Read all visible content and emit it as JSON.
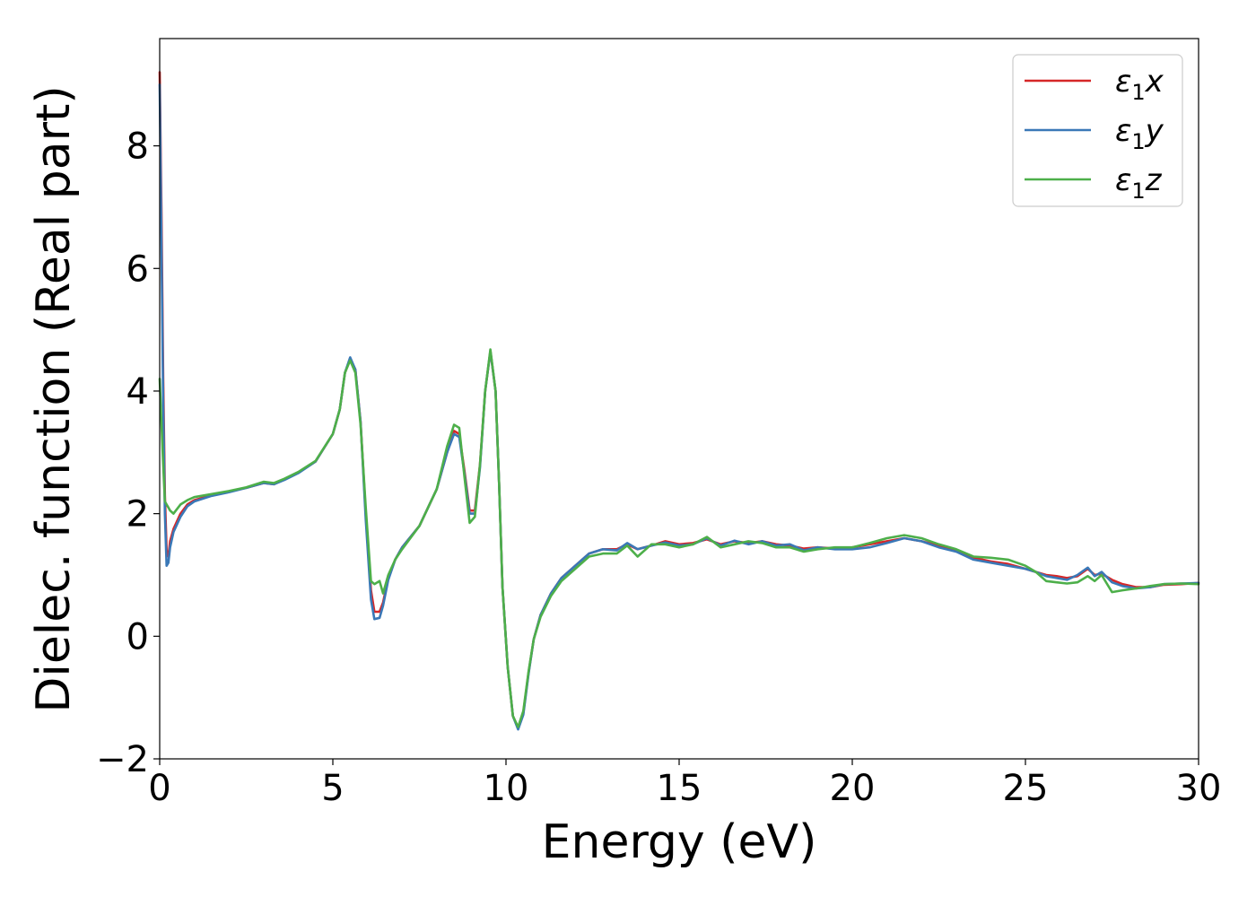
{
  "chart_data": {
    "type": "line",
    "title": "",
    "xlabel": "Energy (eV)",
    "ylabel": "Dielec. function (Real part)",
    "xlim": [
      0,
      30
    ],
    "ylim": [
      -2,
      9.75
    ],
    "xticks": [
      0,
      5,
      10,
      15,
      20,
      25,
      30
    ],
    "yticks": [
      -2,
      0,
      2,
      4,
      6,
      8
    ],
    "grid": false,
    "legend_position": "top-right",
    "series": [
      {
        "name": "ε₁x",
        "legend_main": "ε",
        "legend_sub": "1",
        "legend_suffix": "x",
        "color": "#d62728",
        "x": [
          0.0,
          0.05,
          0.1,
          0.15,
          0.2,
          0.25,
          0.3,
          0.4,
          0.6,
          0.8,
          1.0,
          1.5,
          2.0,
          2.5,
          3.0,
          3.3,
          3.6,
          4.0,
          4.5,
          5.0,
          5.2,
          5.35,
          5.5,
          5.65,
          5.8,
          5.95,
          6.1,
          6.2,
          6.35,
          6.45,
          6.6,
          6.8,
          7.0,
          7.5,
          8.0,
          8.3,
          8.5,
          8.65,
          8.8,
          8.95,
          9.1,
          9.25,
          9.4,
          9.55,
          9.7,
          9.8,
          9.9,
          10.05,
          10.2,
          10.35,
          10.5,
          10.65,
          10.8,
          11.0,
          11.3,
          11.6,
          12.0,
          12.4,
          12.8,
          13.2,
          13.5,
          13.8,
          14.2,
          14.6,
          15.0,
          15.4,
          15.8,
          16.2,
          16.6,
          17.0,
          17.4,
          17.8,
          18.2,
          18.6,
          19.0,
          19.5,
          20.0,
          20.5,
          21.0,
          21.5,
          22.0,
          22.5,
          23.0,
          23.5,
          24.0,
          24.5,
          25.0,
          25.3,
          25.6,
          25.9,
          26.2,
          26.5,
          26.8,
          27.0,
          27.2,
          27.5,
          27.8,
          28.2,
          28.6,
          29.0,
          29.5,
          30.0
        ],
        "y": [
          9.2,
          7.0,
          4.2,
          2.3,
          1.4,
          1.3,
          1.55,
          1.75,
          2.0,
          2.15,
          2.22,
          2.3,
          2.36,
          2.42,
          2.5,
          2.48,
          2.56,
          2.67,
          2.85,
          3.3,
          3.7,
          4.3,
          4.52,
          4.35,
          3.5,
          2.0,
          0.75,
          0.4,
          0.4,
          0.55,
          0.95,
          1.25,
          1.45,
          1.8,
          2.4,
          3.0,
          3.35,
          3.3,
          2.7,
          2.05,
          2.05,
          2.8,
          4.0,
          4.65,
          4.0,
          2.5,
          0.8,
          -0.5,
          -1.3,
          -1.5,
          -1.25,
          -0.6,
          -0.05,
          0.35,
          0.7,
          0.95,
          1.15,
          1.35,
          1.42,
          1.42,
          1.5,
          1.42,
          1.48,
          1.55,
          1.5,
          1.52,
          1.58,
          1.5,
          1.55,
          1.52,
          1.55,
          1.5,
          1.48,
          1.43,
          1.45,
          1.43,
          1.45,
          1.5,
          1.55,
          1.6,
          1.55,
          1.48,
          1.4,
          1.28,
          1.22,
          1.18,
          1.1,
          1.05,
          1.0,
          0.98,
          0.95,
          0.98,
          1.1,
          1.0,
          1.02,
          0.92,
          0.85,
          0.8,
          0.8,
          0.84,
          0.85,
          0.87
        ]
      },
      {
        "name": "ε₁y",
        "legend_main": "ε",
        "legend_sub": "1",
        "legend_suffix": "y",
        "color": "#3a78b7",
        "x": [
          0.0,
          0.05,
          0.1,
          0.15,
          0.2,
          0.25,
          0.3,
          0.4,
          0.6,
          0.8,
          1.0,
          1.5,
          2.0,
          2.5,
          3.0,
          3.3,
          3.6,
          4.0,
          4.5,
          5.0,
          5.2,
          5.35,
          5.5,
          5.65,
          5.8,
          5.95,
          6.1,
          6.2,
          6.35,
          6.45,
          6.6,
          6.8,
          7.0,
          7.5,
          8.0,
          8.3,
          8.5,
          8.65,
          8.8,
          8.95,
          9.1,
          9.25,
          9.4,
          9.55,
          9.7,
          9.8,
          9.9,
          10.05,
          10.2,
          10.35,
          10.5,
          10.65,
          10.8,
          11.0,
          11.3,
          11.6,
          12.0,
          12.4,
          12.8,
          13.2,
          13.5,
          13.8,
          14.2,
          14.6,
          15.0,
          15.4,
          15.8,
          16.2,
          16.6,
          17.0,
          17.4,
          17.8,
          18.2,
          18.6,
          19.0,
          19.5,
          20.0,
          20.5,
          21.0,
          21.5,
          22.0,
          22.5,
          23.0,
          23.5,
          24.0,
          24.5,
          25.0,
          25.3,
          25.6,
          25.9,
          26.2,
          26.5,
          26.8,
          27.0,
          27.2,
          27.5,
          27.8,
          28.2,
          28.6,
          29.0,
          29.5,
          30.0
        ],
        "y": [
          9.0,
          6.5,
          3.8,
          2.0,
          1.15,
          1.2,
          1.45,
          1.7,
          1.95,
          2.12,
          2.2,
          2.29,
          2.35,
          2.42,
          2.5,
          2.48,
          2.55,
          2.66,
          2.85,
          3.3,
          3.7,
          4.3,
          4.55,
          4.35,
          3.5,
          1.9,
          0.6,
          0.28,
          0.3,
          0.5,
          0.92,
          1.25,
          1.45,
          1.8,
          2.4,
          3.0,
          3.3,
          3.25,
          2.65,
          2.0,
          2.0,
          2.75,
          4.0,
          4.65,
          4.0,
          2.5,
          0.8,
          -0.5,
          -1.3,
          -1.52,
          -1.28,
          -0.62,
          -0.05,
          0.35,
          0.7,
          0.95,
          1.15,
          1.35,
          1.42,
          1.4,
          1.52,
          1.42,
          1.48,
          1.53,
          1.48,
          1.5,
          1.6,
          1.48,
          1.56,
          1.5,
          1.55,
          1.48,
          1.5,
          1.4,
          1.45,
          1.42,
          1.42,
          1.45,
          1.52,
          1.6,
          1.55,
          1.45,
          1.38,
          1.25,
          1.2,
          1.15,
          1.1,
          1.05,
          0.98,
          0.95,
          0.92,
          1.0,
          1.12,
          0.98,
          1.05,
          0.88,
          0.82,
          0.78,
          0.8,
          0.85,
          0.86,
          0.87
        ]
      },
      {
        "name": "ε₁z",
        "legend_main": "ε",
        "legend_sub": "1",
        "legend_suffix": "z",
        "color": "#4daf4a",
        "x": [
          0.0,
          0.05,
          0.1,
          0.15,
          0.2,
          0.25,
          0.3,
          0.4,
          0.6,
          0.8,
          1.0,
          1.5,
          2.0,
          2.5,
          3.0,
          3.3,
          3.6,
          4.0,
          4.5,
          5.0,
          5.2,
          5.35,
          5.5,
          5.65,
          5.8,
          5.95,
          6.1,
          6.2,
          6.35,
          6.45,
          6.6,
          6.8,
          7.0,
          7.5,
          8.0,
          8.3,
          8.5,
          8.65,
          8.8,
          8.95,
          9.1,
          9.25,
          9.4,
          9.55,
          9.7,
          9.8,
          9.9,
          10.05,
          10.2,
          10.35,
          10.5,
          10.65,
          10.8,
          11.0,
          11.3,
          11.6,
          12.0,
          12.4,
          12.8,
          13.2,
          13.5,
          13.8,
          14.2,
          14.6,
          15.0,
          15.4,
          15.8,
          16.2,
          16.6,
          17.0,
          17.4,
          17.8,
          18.2,
          18.6,
          19.0,
          19.5,
          20.0,
          20.5,
          21.0,
          21.5,
          22.0,
          22.5,
          23.0,
          23.5,
          24.0,
          24.5,
          25.0,
          25.3,
          25.6,
          25.9,
          26.2,
          26.5,
          26.8,
          27.0,
          27.2,
          27.5,
          27.8,
          28.2,
          28.6,
          29.0,
          29.5,
          30.0
        ],
        "y": [
          4.2,
          3.5,
          2.8,
          2.2,
          2.15,
          2.1,
          2.05,
          2.0,
          2.15,
          2.22,
          2.27,
          2.32,
          2.37,
          2.43,
          2.52,
          2.5,
          2.57,
          2.68,
          2.86,
          3.3,
          3.7,
          4.3,
          4.5,
          4.3,
          3.45,
          2.1,
          0.9,
          0.85,
          0.9,
          0.7,
          1.0,
          1.25,
          1.42,
          1.8,
          2.4,
          3.1,
          3.45,
          3.4,
          2.6,
          1.85,
          1.95,
          2.8,
          4.0,
          4.68,
          4.0,
          2.5,
          0.8,
          -0.5,
          -1.3,
          -1.48,
          -1.22,
          -0.58,
          -0.05,
          0.32,
          0.66,
          0.9,
          1.1,
          1.3,
          1.35,
          1.35,
          1.48,
          1.3,
          1.5,
          1.5,
          1.45,
          1.5,
          1.62,
          1.45,
          1.5,
          1.55,
          1.52,
          1.45,
          1.45,
          1.38,
          1.42,
          1.45,
          1.45,
          1.52,
          1.6,
          1.65,
          1.6,
          1.5,
          1.42,
          1.3,
          1.28,
          1.25,
          1.15,
          1.05,
          0.9,
          0.88,
          0.86,
          0.88,
          0.98,
          0.9,
          1.0,
          0.72,
          0.75,
          0.78,
          0.82,
          0.85,
          0.86,
          0.85
        ]
      }
    ]
  }
}
